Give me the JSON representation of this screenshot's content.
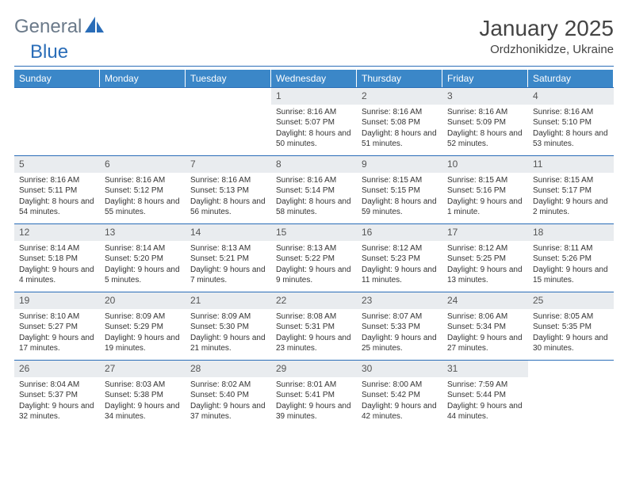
{
  "brand": {
    "text1": "General",
    "text2": "Blue"
  },
  "title": "January 2025",
  "location": "Ordzhonikidze, Ukraine",
  "colors": {
    "header_bg": "#3b87c8",
    "border": "#2a6db8",
    "daynum_bg": "#e9ecef",
    "brand_gray": "#6b7a8a",
    "brand_blue": "#2a6db8"
  },
  "weekdays": [
    "Sunday",
    "Monday",
    "Tuesday",
    "Wednesday",
    "Thursday",
    "Friday",
    "Saturday"
  ],
  "first_weekday_index": 3,
  "days": [
    {
      "n": 1,
      "sr": "8:16 AM",
      "ss": "5:07 PM",
      "dl": "8 hours and 50 minutes."
    },
    {
      "n": 2,
      "sr": "8:16 AM",
      "ss": "5:08 PM",
      "dl": "8 hours and 51 minutes."
    },
    {
      "n": 3,
      "sr": "8:16 AM",
      "ss": "5:09 PM",
      "dl": "8 hours and 52 minutes."
    },
    {
      "n": 4,
      "sr": "8:16 AM",
      "ss": "5:10 PM",
      "dl": "8 hours and 53 minutes."
    },
    {
      "n": 5,
      "sr": "8:16 AM",
      "ss": "5:11 PM",
      "dl": "8 hours and 54 minutes."
    },
    {
      "n": 6,
      "sr": "8:16 AM",
      "ss": "5:12 PM",
      "dl": "8 hours and 55 minutes."
    },
    {
      "n": 7,
      "sr": "8:16 AM",
      "ss": "5:13 PM",
      "dl": "8 hours and 56 minutes."
    },
    {
      "n": 8,
      "sr": "8:16 AM",
      "ss": "5:14 PM",
      "dl": "8 hours and 58 minutes."
    },
    {
      "n": 9,
      "sr": "8:15 AM",
      "ss": "5:15 PM",
      "dl": "8 hours and 59 minutes."
    },
    {
      "n": 10,
      "sr": "8:15 AM",
      "ss": "5:16 PM",
      "dl": "9 hours and 1 minute."
    },
    {
      "n": 11,
      "sr": "8:15 AM",
      "ss": "5:17 PM",
      "dl": "9 hours and 2 minutes."
    },
    {
      "n": 12,
      "sr": "8:14 AM",
      "ss": "5:18 PM",
      "dl": "9 hours and 4 minutes."
    },
    {
      "n": 13,
      "sr": "8:14 AM",
      "ss": "5:20 PM",
      "dl": "9 hours and 5 minutes."
    },
    {
      "n": 14,
      "sr": "8:13 AM",
      "ss": "5:21 PM",
      "dl": "9 hours and 7 minutes."
    },
    {
      "n": 15,
      "sr": "8:13 AM",
      "ss": "5:22 PM",
      "dl": "9 hours and 9 minutes."
    },
    {
      "n": 16,
      "sr": "8:12 AM",
      "ss": "5:23 PM",
      "dl": "9 hours and 11 minutes."
    },
    {
      "n": 17,
      "sr": "8:12 AM",
      "ss": "5:25 PM",
      "dl": "9 hours and 13 minutes."
    },
    {
      "n": 18,
      "sr": "8:11 AM",
      "ss": "5:26 PM",
      "dl": "9 hours and 15 minutes."
    },
    {
      "n": 19,
      "sr": "8:10 AM",
      "ss": "5:27 PM",
      "dl": "9 hours and 17 minutes."
    },
    {
      "n": 20,
      "sr": "8:09 AM",
      "ss": "5:29 PM",
      "dl": "9 hours and 19 minutes."
    },
    {
      "n": 21,
      "sr": "8:09 AM",
      "ss": "5:30 PM",
      "dl": "9 hours and 21 minutes."
    },
    {
      "n": 22,
      "sr": "8:08 AM",
      "ss": "5:31 PM",
      "dl": "9 hours and 23 minutes."
    },
    {
      "n": 23,
      "sr": "8:07 AM",
      "ss": "5:33 PM",
      "dl": "9 hours and 25 minutes."
    },
    {
      "n": 24,
      "sr": "8:06 AM",
      "ss": "5:34 PM",
      "dl": "9 hours and 27 minutes."
    },
    {
      "n": 25,
      "sr": "8:05 AM",
      "ss": "5:35 PM",
      "dl": "9 hours and 30 minutes."
    },
    {
      "n": 26,
      "sr": "8:04 AM",
      "ss": "5:37 PM",
      "dl": "9 hours and 32 minutes."
    },
    {
      "n": 27,
      "sr": "8:03 AM",
      "ss": "5:38 PM",
      "dl": "9 hours and 34 minutes."
    },
    {
      "n": 28,
      "sr": "8:02 AM",
      "ss": "5:40 PM",
      "dl": "9 hours and 37 minutes."
    },
    {
      "n": 29,
      "sr": "8:01 AM",
      "ss": "5:41 PM",
      "dl": "9 hours and 39 minutes."
    },
    {
      "n": 30,
      "sr": "8:00 AM",
      "ss": "5:42 PM",
      "dl": "9 hours and 42 minutes."
    },
    {
      "n": 31,
      "sr": "7:59 AM",
      "ss": "5:44 PM",
      "dl": "9 hours and 44 minutes."
    }
  ],
  "labels": {
    "sunrise": "Sunrise:",
    "sunset": "Sunset:",
    "daylight": "Daylight:"
  }
}
